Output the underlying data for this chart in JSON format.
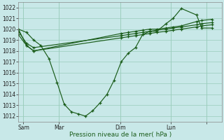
{
  "bg_color": "#c8e8e8",
  "grid_color": "#99ccbb",
  "line_color": "#1a5c1a",
  "xlabel": "Pression niveau de la mer( hPa )",
  "ylim": [
    1011.5,
    1022.5
  ],
  "yticks": [
    1012,
    1013,
    1014,
    1015,
    1016,
    1017,
    1018,
    1019,
    1020,
    1021,
    1022
  ],
  "xlim": [
    0,
    20
  ],
  "xtick_positions": [
    0.5,
    4,
    10,
    15,
    18.5
  ],
  "xtick_labels": [
    "Sam",
    "Mar",
    "Dim",
    "Lun",
    ""
  ],
  "vline_positions": [
    0.5,
    4,
    10,
    15,
    18.5
  ],
  "series1_x": [
    0.0,
    0.8,
    1.5,
    2.2,
    3.0,
    3.8,
    4.5,
    5.2,
    5.9,
    6.6,
    7.3,
    8.0,
    8.7,
    9.4,
    10.1,
    10.8,
    11.5,
    12.2,
    12.9,
    13.6,
    14.5,
    15.2,
    16.0,
    17.5,
    18.0,
    19.0
  ],
  "series1_y": [
    1020.0,
    1019.7,
    1019.0,
    1018.5,
    1017.3,
    1015.1,
    1013.1,
    1012.4,
    1012.2,
    1012.0,
    1012.5,
    1013.2,
    1014.0,
    1015.3,
    1017.0,
    1017.8,
    1018.3,
    1019.5,
    1019.8,
    1019.8,
    1020.5,
    1021.0,
    1021.9,
    1021.3,
    1020.1,
    1020.1
  ],
  "series2_x": [
    0.0,
    0.8,
    1.5,
    10.1,
    10.8,
    11.5,
    12.2,
    12.9,
    13.6,
    14.5,
    15.2,
    16.0,
    17.5,
    18.0,
    19.0
  ],
  "series2_y": [
    1019.5,
    1018.5,
    1018.0,
    1019.2,
    1019.3,
    1019.4,
    1019.5,
    1019.6,
    1019.7,
    1019.8,
    1019.9,
    1020.0,
    1020.2,
    1020.3,
    1020.4
  ],
  "series3_x": [
    0.0,
    0.8,
    1.5,
    10.1,
    10.8,
    11.5,
    12.2,
    12.9,
    13.6,
    14.5,
    15.2,
    16.0,
    17.5,
    18.0,
    19.0
  ],
  "series3_y": [
    1019.8,
    1018.7,
    1018.3,
    1019.4,
    1019.5,
    1019.6,
    1019.7,
    1019.8,
    1019.9,
    1020.0,
    1020.1,
    1020.2,
    1020.4,
    1020.5,
    1020.6
  ],
  "series4_x": [
    0.0,
    0.8,
    1.5,
    10.1,
    10.8,
    11.5,
    12.2,
    12.9,
    13.6,
    14.5,
    15.2,
    16.0,
    17.5,
    18.0,
    19.0
  ],
  "series4_y": [
    1020.0,
    1018.5,
    1018.0,
    1019.6,
    1019.7,
    1019.8,
    1019.9,
    1020.0,
    1020.0,
    1020.1,
    1020.2,
    1020.3,
    1020.7,
    1020.8,
    1020.9
  ]
}
